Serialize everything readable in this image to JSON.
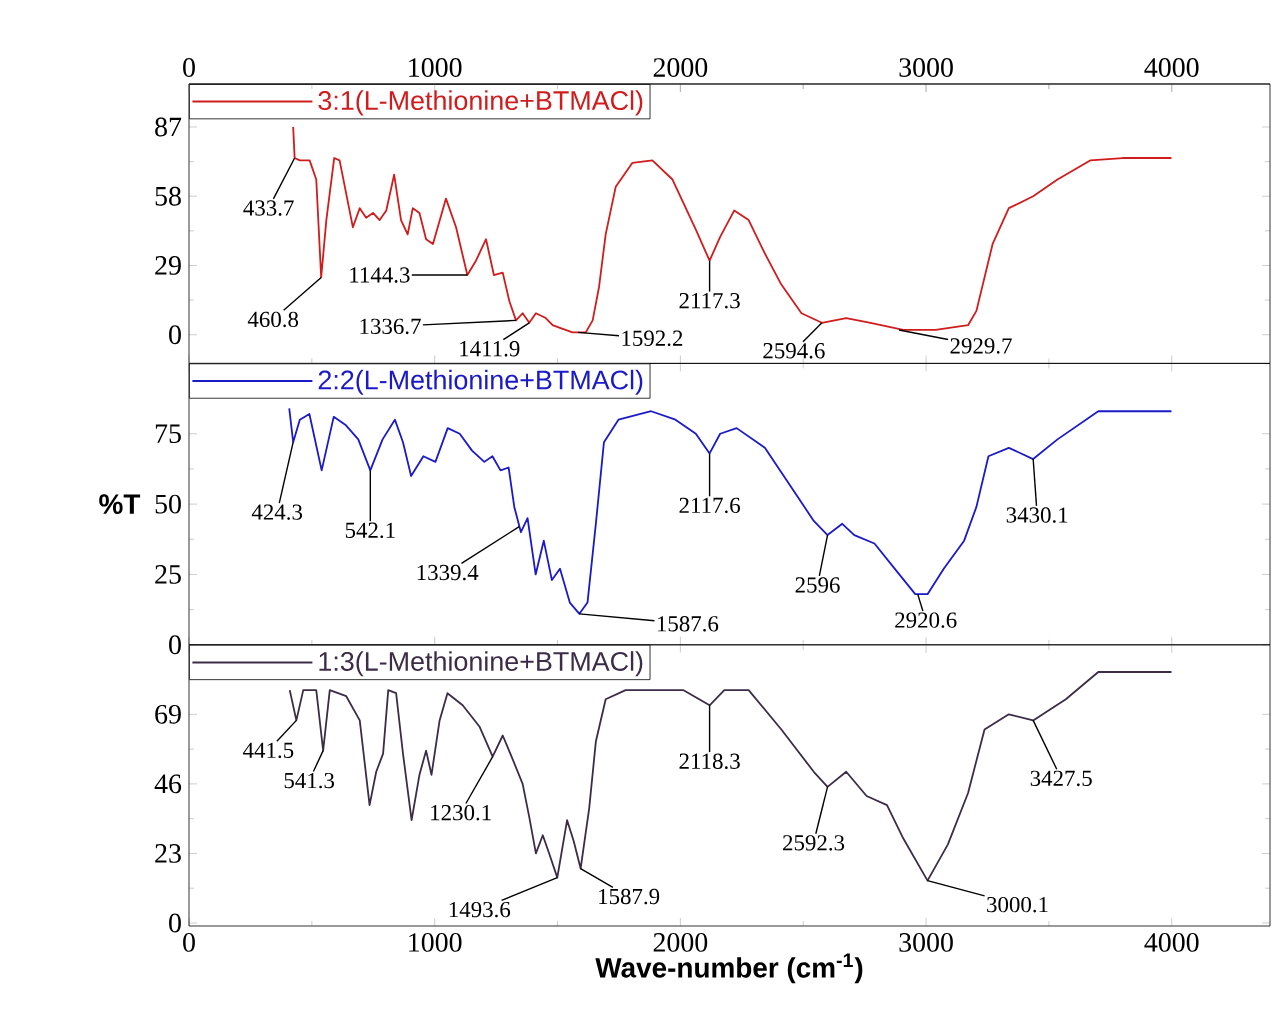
{
  "chart_data": [
    {
      "type": "line",
      "xlim": [
        0,
        4400
      ],
      "xticks": [
        0,
        1000,
        2000,
        3000,
        4000
      ],
      "x2lim": [
        0,
        4400
      ],
      "x2ticks": [
        0,
        1000,
        2000,
        3000,
        4000
      ],
      "tick_labels": "y",
      "ylim": [
        -12,
        105
      ],
      "yticks": [
        0,
        29,
        58,
        87
      ],
      "legend": "top left",
      "series": [
        {
          "name": "3:1(L-Methionine+BTMACl)",
          "color": "#d01c1c",
          "x": [
            424,
            430,
            451,
            491,
            518,
            538,
            559,
            591,
            613,
            640,
            667,
            695,
            721,
            749,
            776,
            803,
            835,
            863,
            890,
            911,
            938,
            965,
            993,
            1046,
            1087,
            1133,
            1168,
            1209,
            1241,
            1277,
            1304,
            1331,
            1358,
            1385,
            1412,
            1452,
            1480,
            1507,
            1561,
            1615,
            1643,
            1669,
            1696,
            1737,
            1805,
            1886,
            1968,
            2063,
            2119,
            2162,
            2219,
            2278,
            2344,
            2411,
            2493,
            2576,
            2675,
            2774,
            2907,
            3039,
            3171,
            3205,
            3271,
            3337,
            3436,
            3535,
            3668,
            3800,
            3999
          ],
          "values": [
            87,
            74,
            73,
            73,
            65,
            24,
            48,
            74,
            73,
            59,
            45,
            53,
            49,
            51,
            48,
            52,
            67,
            48,
            42,
            53,
            51,
            40,
            38,
            57,
            45,
            25,
            31,
            40,
            25,
            26,
            14,
            6,
            9,
            5,
            9,
            7,
            4,
            3,
            1,
            1,
            6,
            20,
            42,
            62,
            72,
            73,
            65,
            44,
            31,
            41,
            52,
            48,
            34,
            21,
            9,
            5,
            7,
            5,
            2,
            2,
            4,
            10,
            38,
            53,
            58,
            65,
            73,
            74,
            74
          ]
        }
      ],
      "annotations": [
        {
          "text": "433.7",
          "x": 430,
          "y": 74
        },
        {
          "text": "460.8",
          "x": 538,
          "y": 24
        },
        {
          "text": "1144.3",
          "x": 1133,
          "y": 25
        },
        {
          "text": "1336.7",
          "x": 1331,
          "y": 6
        },
        {
          "text": "1411.9",
          "x": 1385,
          "y": 5
        },
        {
          "text": "1592.2",
          "x": 1583,
          "y": 1
        },
        {
          "text": "2117.3",
          "x": 2119,
          "y": 31
        },
        {
          "text": "2594.6",
          "x": 2576,
          "y": 5
        },
        {
          "text": "2929.7",
          "x": 2890,
          "y": 2
        }
      ]
    },
    {
      "type": "line",
      "xlim": [
        0,
        4400
      ],
      "xticks": [
        0,
        1000,
        2000,
        3000,
        4000
      ],
      "tick_labels": "y",
      "ylim": [
        0,
        100
      ],
      "yticks": [
        0,
        25,
        50,
        75
      ],
      "ylabel": "%T",
      "legend": "top left",
      "series": [
        {
          "name": "2:2(L-Methionine+BTMACl)",
          "color": "#1a1ac8",
          "x": [
            408,
            424,
            451,
            490,
            540,
            589,
            639,
            689,
            738,
            788,
            838,
            871,
            904,
            954,
            1003,
            1053,
            1102,
            1152,
            1202,
            1235,
            1268,
            1301,
            1324,
            1351,
            1378,
            1411,
            1444,
            1477,
            1510,
            1550,
            1589,
            1622,
            1656,
            1689,
            1748,
            1881,
            1980,
            2063,
            2119,
            2162,
            2229,
            2344,
            2444,
            2543,
            2599,
            2659,
            2708,
            2790,
            2873,
            2956,
            3006,
            3072,
            3155,
            3205,
            3254,
            3337,
            3436,
            3535,
            3701,
            3999
          ],
          "values": [
            84,
            72,
            80,
            82,
            62,
            81,
            78,
            73,
            62,
            73,
            80,
            72,
            60,
            67,
            65,
            77,
            75,
            69,
            65,
            67,
            62,
            63,
            49,
            40,
            45,
            25,
            37,
            23,
            27,
            15,
            11,
            15,
            43,
            72,
            80,
            83,
            80,
            75,
            68,
            75,
            77,
            70,
            57,
            44,
            39,
            43,
            39,
            36,
            27,
            18,
            18,
            27,
            37,
            49,
            67,
            70,
            66,
            73,
            83,
            83
          ]
        }
      ],
      "annotations": [
        {
          "text": "424.3",
          "x": 424,
          "y": 72
        },
        {
          "text": "542.1",
          "x": 738,
          "y": 62
        },
        {
          "text": "1339.4",
          "x": 1344,
          "y": 42
        },
        {
          "text": "1587.6",
          "x": 1589,
          "y": 11
        },
        {
          "text": "2117.6",
          "x": 2119,
          "y": 68
        },
        {
          "text": "2596",
          "x": 2599,
          "y": 39
        },
        {
          "text": "2920.6",
          "x": 2966,
          "y": 18
        },
        {
          "text": "3430.1",
          "x": 3436,
          "y": 66
        }
      ]
    },
    {
      "type": "line",
      "xlim": [
        0,
        4400
      ],
      "xticks": [
        0,
        1000,
        2000,
        3000,
        4000
      ],
      "ylim": [
        -1,
        92
      ],
      "yticks": [
        0,
        23,
        46,
        69
      ],
      "xlabel": "Wave-number (cm$^{-1}$)",
      "legend": "top left",
      "series": [
        {
          "name": "1:3(L-Methionine+BTMACl)",
          "color": "#3c2c48",
          "x": [
            410,
            437,
            465,
            518,
            546,
            573,
            640,
            695,
            735,
            762,
            790,
            811,
            843,
            871,
            906,
            938,
            965,
            987,
            1020,
            1052,
            1114,
            1182,
            1236,
            1277,
            1318,
            1358,
            1385,
            1412,
            1440,
            1466,
            1499,
            1539,
            1566,
            1594,
            1629,
            1656,
            1696,
            1777,
            2013,
            2119,
            2179,
            2278,
            2411,
            2543,
            2599,
            2675,
            2758,
            2841,
            2907,
            3006,
            3089,
            3171,
            3238,
            3337,
            3436,
            3569,
            3701,
            3999
          ],
          "values": [
            77,
            67,
            77,
            77,
            57,
            77,
            75,
            67,
            39,
            50,
            56,
            77,
            76,
            56,
            34,
            49,
            57,
            49,
            67,
            76,
            72,
            65,
            55,
            62,
            54,
            46,
            35,
            23,
            29,
            23,
            15,
            34,
            27,
            18,
            38,
            60,
            74,
            77,
            77,
            72,
            77,
            77,
            64,
            50,
            45,
            50,
            42,
            39,
            28,
            14,
            26,
            43,
            64,
            69,
            67,
            74,
            83,
            83
          ]
        }
      ],
      "annotations": [
        {
          "text": "441.5",
          "x": 437,
          "y": 67
        },
        {
          "text": "541.3",
          "x": 546,
          "y": 57
        },
        {
          "text": "1230.1",
          "x": 1236,
          "y": 55
        },
        {
          "text": "1493.6",
          "x": 1499,
          "y": 15
        },
        {
          "text": "1587.9",
          "x": 1594,
          "y": 18
        },
        {
          "text": "2118.3",
          "x": 2119,
          "y": 72
        },
        {
          "text": "2592.3",
          "x": 2599,
          "y": 45
        },
        {
          "text": "3000.1",
          "x": 3006,
          "y": 14
        },
        {
          "text": "3427.5",
          "x": 3436,
          "y": 67
        }
      ]
    }
  ]
}
